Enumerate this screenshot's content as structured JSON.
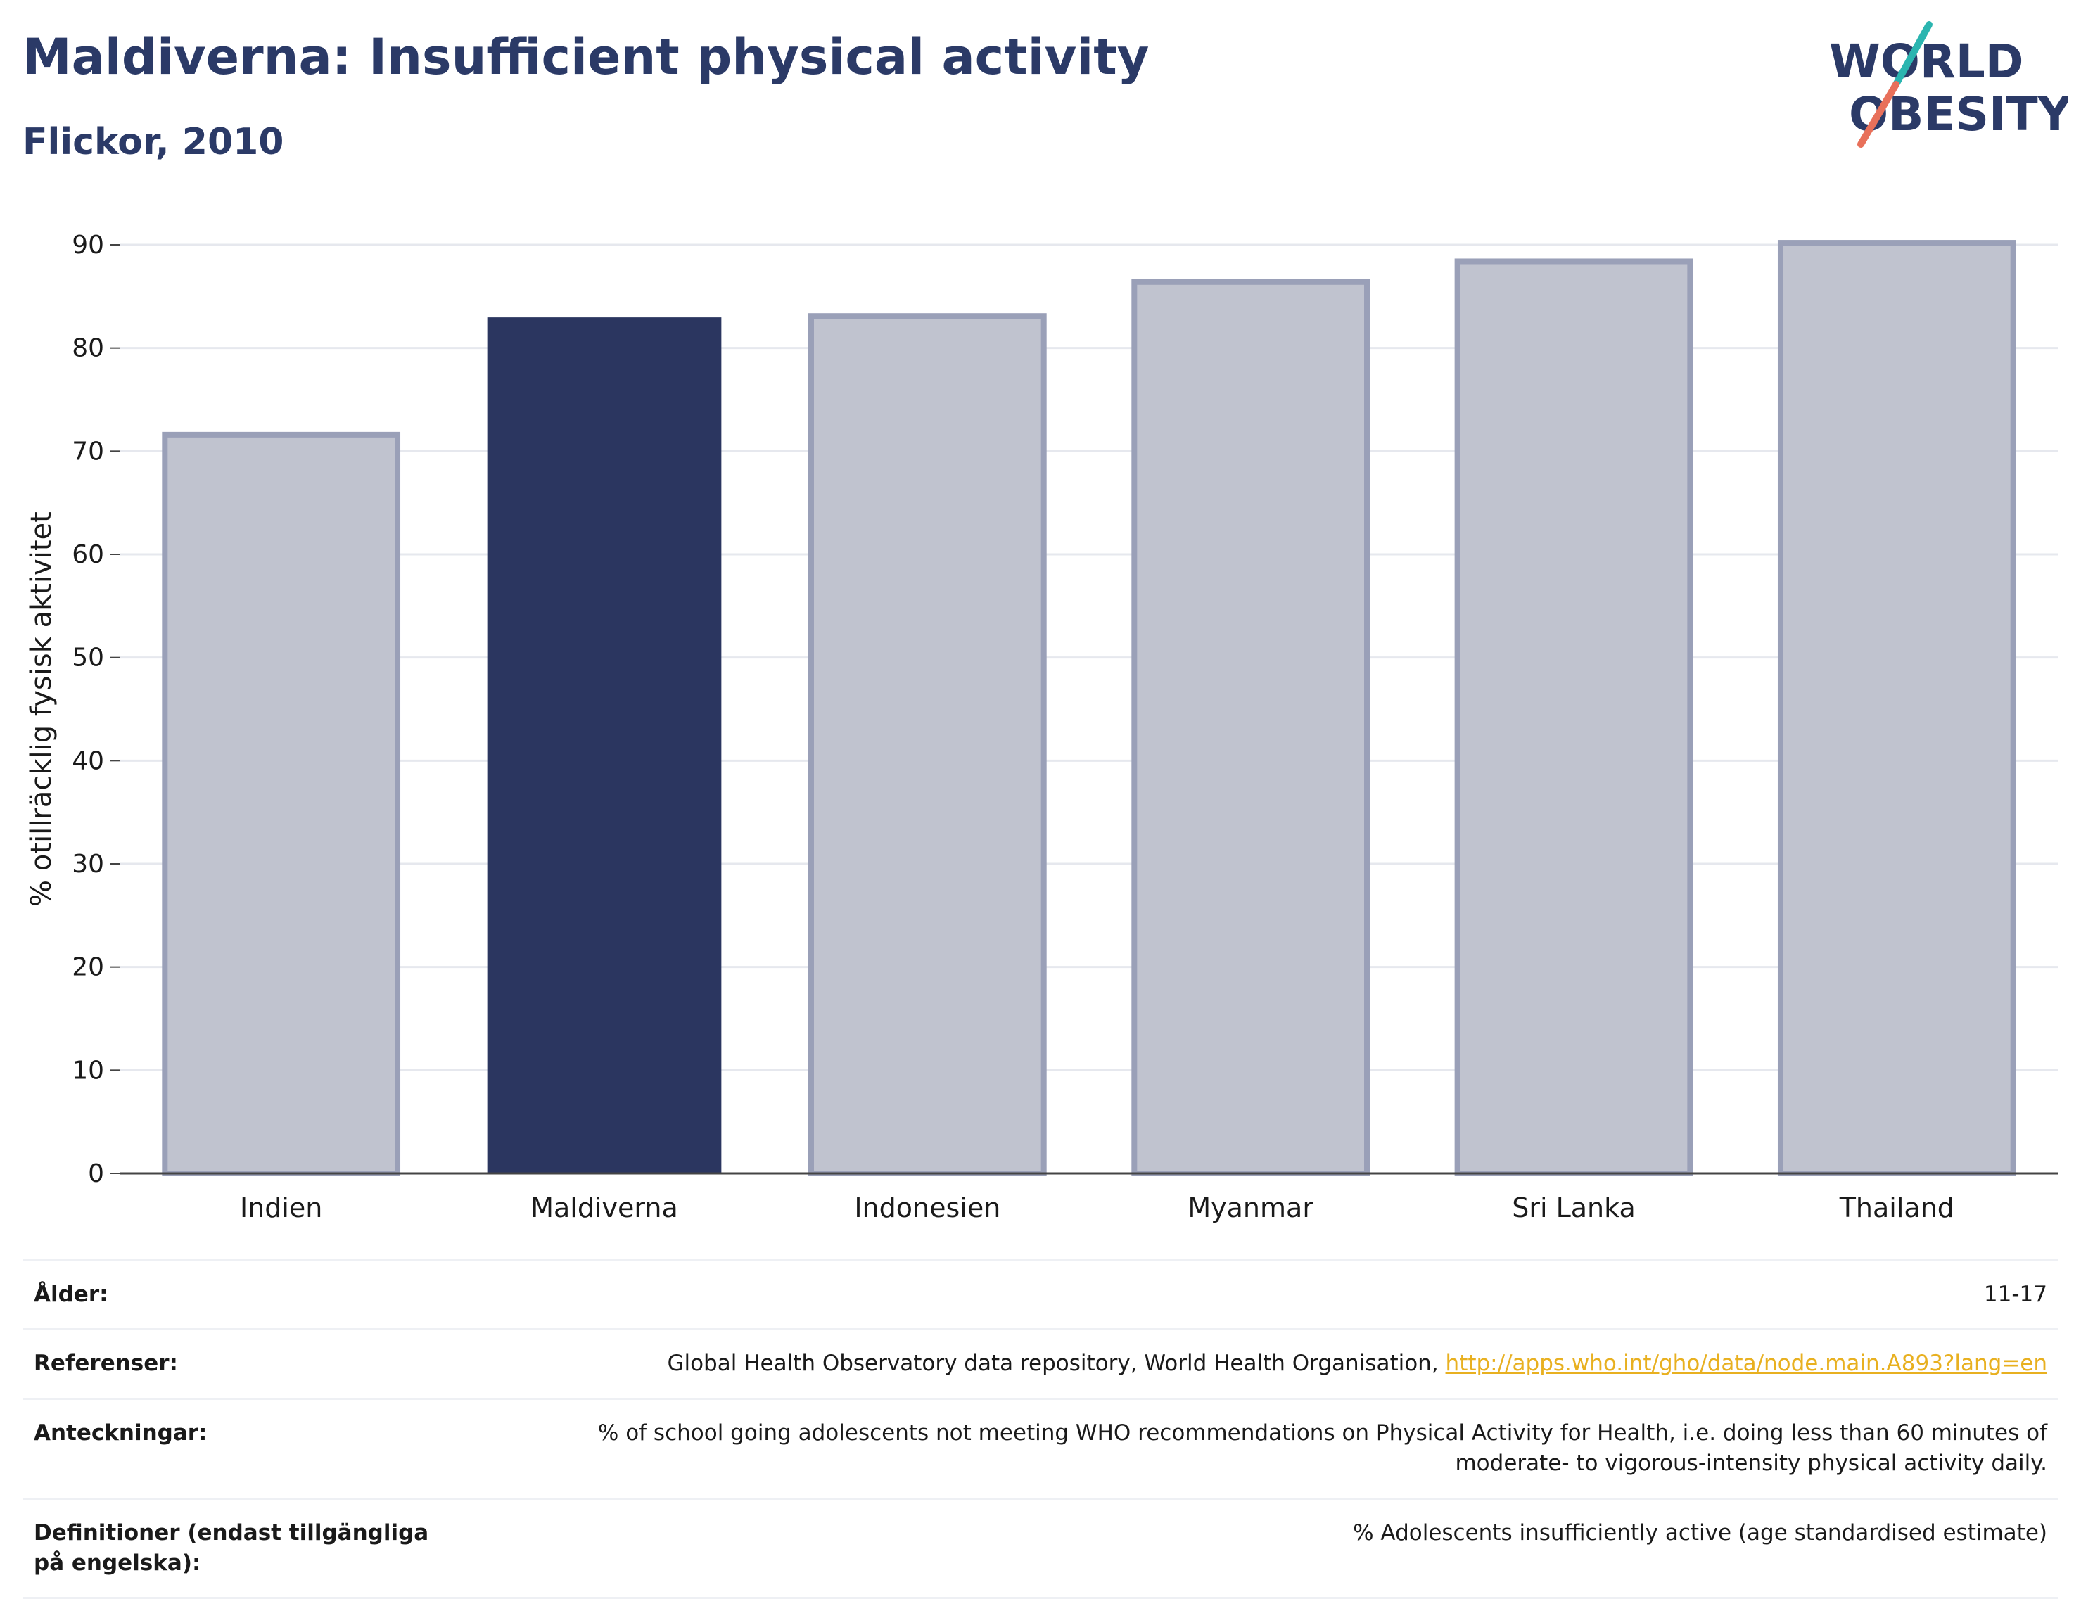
{
  "header": {
    "title": "Maldiverna: Insufficient physical activity",
    "subtitle": "Flickor, 2010"
  },
  "logo": {
    "line1": "WORLD",
    "line2": "OBESITY",
    "accent_teal": "#2bb5b0",
    "accent_coral": "#e8705a",
    "text_color": "#2b3a67"
  },
  "chart_data": {
    "type": "bar",
    "categories": [
      "Indien",
      "Maldiverna",
      "Indonesien",
      "Myanmar",
      "Sri Lanka",
      "Thailand"
    ],
    "values": [
      71.6,
      82.9,
      83.1,
      86.4,
      88.4,
      90.2
    ],
    "highlight": "Maldiverna",
    "xlabel": "",
    "ylabel": "% otillräcklig fysisk aktivitet",
    "ylim": [
      0,
      90
    ],
    "yticks": [
      0,
      10,
      20,
      30,
      40,
      50,
      60,
      70,
      80,
      90
    ],
    "grid": true,
    "colors": {
      "highlight": "#2b3660",
      "other_fill": "#c0c3cf",
      "other_stroke": "#9aa0b8"
    }
  },
  "meta": {
    "rows": [
      {
        "label": "Ålder:",
        "value": "11-17"
      },
      {
        "label": "Referenser:",
        "value": "Global Health Observatory data repository, World Health Organisation, ",
        "link": "http://apps.who.int/gho/data/node.main.A893?lang=en"
      },
      {
        "label": "Anteckningar:",
        "value": "% of school going adolescents not meeting WHO recommendations on Physical Activity for Health, i.e. doing less than 60 minutes of moderate- to vigorous-intensity physical activity daily."
      },
      {
        "label": "Definitioner (endast tillgängliga på engelska):",
        "value": "% Adolescents insufficiently active (age standardised estimate)"
      }
    ]
  }
}
